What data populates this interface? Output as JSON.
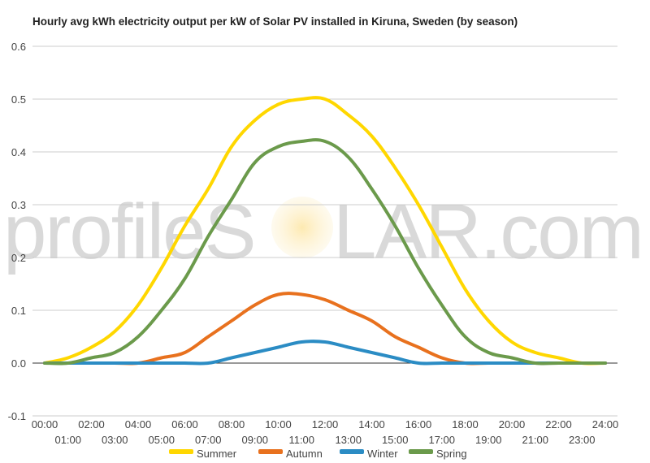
{
  "chart_data": {
    "type": "line",
    "title": "Hourly avg kWh electricity output per kW of Solar PV installed in Kiruna, Sweden (by season)",
    "xlabel": "",
    "ylabel": "",
    "ylim": [
      -0.1,
      0.6
    ],
    "yticks": [
      "-0.1",
      "0.0",
      "0.1",
      "0.2",
      "0.3",
      "0.4",
      "0.5",
      "0.6"
    ],
    "yticks_values": [
      -0.1,
      0,
      0.1,
      0.2,
      0.3,
      0.4,
      0.5,
      0.6
    ],
    "categories": [
      "00:00",
      "01:00",
      "02:00",
      "03:00",
      "04:00",
      "05:00",
      "06:00",
      "07:00",
      "08:00",
      "09:00",
      "10:00",
      "11:00",
      "12:00",
      "13:00",
      "14:00",
      "15:00",
      "16:00",
      "17:00",
      "18:00",
      "19:00",
      "20:00",
      "21:00",
      "22:00",
      "23:00",
      "24:00"
    ],
    "grid": true,
    "legend_position": "bottom",
    "series": [
      {
        "name": "Summer",
        "color": "#FFD700",
        "values": [
          0.0,
          0.01,
          0.03,
          0.06,
          0.11,
          0.18,
          0.26,
          0.33,
          0.41,
          0.46,
          0.49,
          0.5,
          0.5,
          0.47,
          0.43,
          0.37,
          0.3,
          0.22,
          0.14,
          0.08,
          0.04,
          0.02,
          0.01,
          0.0,
          0.0
        ]
      },
      {
        "name": "Autumn",
        "color": "#E8711E",
        "values": [
          0.0,
          0.0,
          0.0,
          0.0,
          0.0,
          0.01,
          0.02,
          0.05,
          0.08,
          0.11,
          0.13,
          0.13,
          0.12,
          0.1,
          0.08,
          0.05,
          0.03,
          0.01,
          0.0,
          0.0,
          0.0,
          0.0,
          0.0,
          0.0,
          0.0
        ]
      },
      {
        "name": "Winter",
        "color": "#2B8CC4",
        "values": [
          0.0,
          0.0,
          0.0,
          0.0,
          0.0,
          0.0,
          0.0,
          0.0,
          0.01,
          0.02,
          0.03,
          0.04,
          0.04,
          0.03,
          0.02,
          0.01,
          0.0,
          0.0,
          0.0,
          0.0,
          0.0,
          0.0,
          0.0,
          0.0,
          0.0
        ]
      },
      {
        "name": "Spring",
        "color": "#6B9A4B",
        "values": [
          0.0,
          0.0,
          0.01,
          0.02,
          0.05,
          0.1,
          0.16,
          0.24,
          0.31,
          0.38,
          0.41,
          0.42,
          0.42,
          0.39,
          0.33,
          0.26,
          0.18,
          0.11,
          0.05,
          0.02,
          0.01,
          0.0,
          0.0,
          0.0,
          0.0
        ]
      }
    ]
  },
  "watermark": {
    "text_left": "profileS",
    "text_right": "LAR.com"
  }
}
